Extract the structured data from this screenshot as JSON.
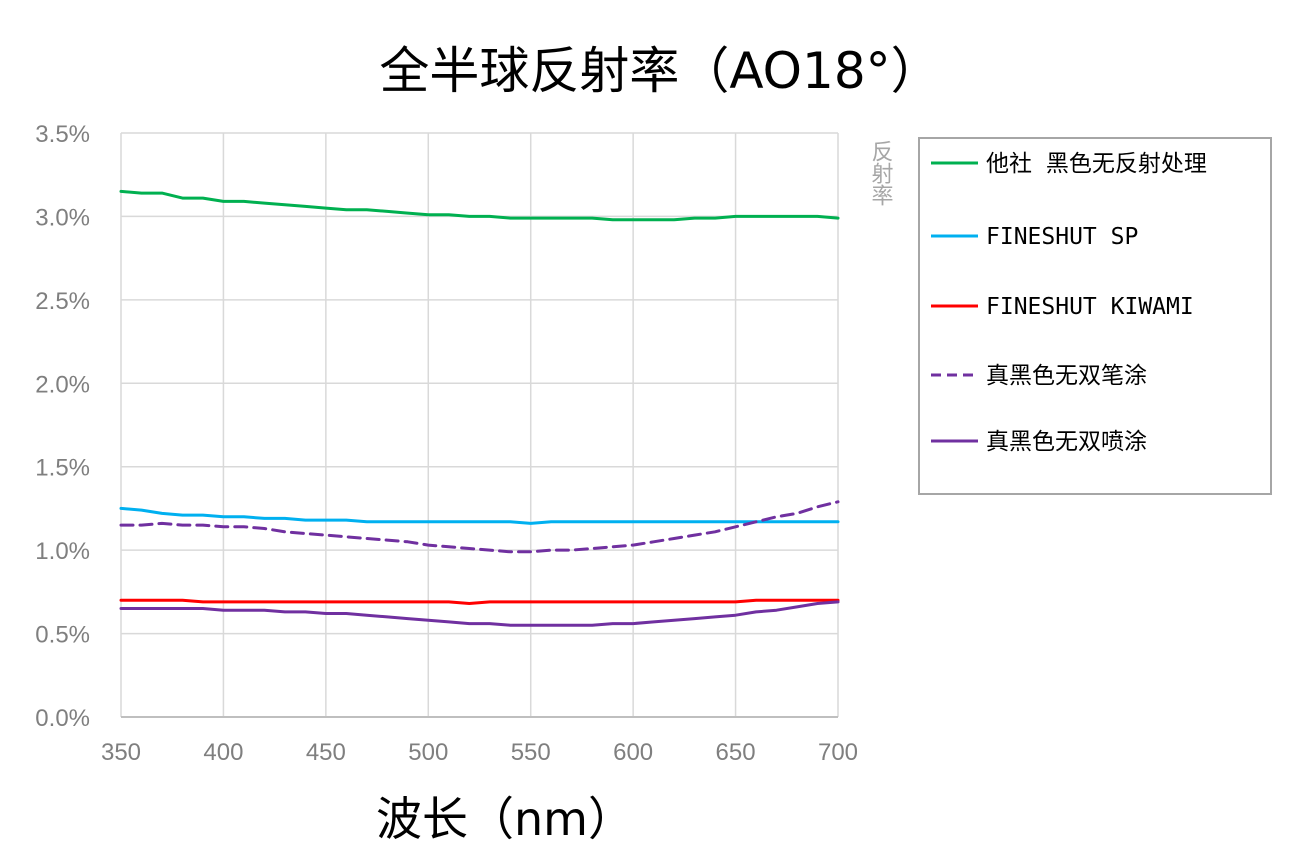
{
  "chart_data": {
    "type": "line",
    "title": "全半球反射率（AO18°）",
    "xlabel": "波长（nm）",
    "ylabel": "反射率",
    "xlim": [
      350,
      700
    ],
    "ylim": [
      0,
      3.5
    ],
    "x_ticks": [
      "350",
      "400",
      "450",
      "500",
      "550",
      "600",
      "650",
      "700"
    ],
    "y_ticks": [
      "0.0%",
      "0.5%",
      "1.0%",
      "1.5%",
      "2.0%",
      "2.5%",
      "3.0%",
      "3.5%"
    ],
    "grid": true,
    "legend_position": "right",
    "series": [
      {
        "name": "他社 黑色无反射处理",
        "color": "#00b050",
        "dash": false,
        "x": [
          350,
          360,
          370,
          380,
          390,
          400,
          410,
          420,
          430,
          440,
          450,
          460,
          470,
          480,
          490,
          500,
          510,
          520,
          530,
          540,
          550,
          560,
          570,
          580,
          590,
          600,
          610,
          620,
          630,
          640,
          650,
          660,
          670,
          680,
          690,
          700
        ],
        "values": [
          3.15,
          3.14,
          3.14,
          3.11,
          3.11,
          3.09,
          3.09,
          3.08,
          3.07,
          3.06,
          3.05,
          3.04,
          3.04,
          3.03,
          3.02,
          3.01,
          3.01,
          3.0,
          3.0,
          2.99,
          2.99,
          2.99,
          2.99,
          2.99,
          2.98,
          2.98,
          2.98,
          2.98,
          2.99,
          2.99,
          3.0,
          3.0,
          3.0,
          3.0,
          3.0,
          2.99
        ]
      },
      {
        "name": "FINESHUT SP",
        "color": "#00b0f0",
        "dash": false,
        "x": [
          350,
          360,
          370,
          380,
          390,
          400,
          410,
          420,
          430,
          440,
          450,
          460,
          470,
          480,
          490,
          500,
          510,
          520,
          530,
          540,
          550,
          560,
          570,
          580,
          590,
          600,
          610,
          620,
          630,
          640,
          650,
          660,
          670,
          680,
          690,
          700
        ],
        "values": [
          1.25,
          1.24,
          1.22,
          1.21,
          1.21,
          1.2,
          1.2,
          1.19,
          1.19,
          1.18,
          1.18,
          1.18,
          1.17,
          1.17,
          1.17,
          1.17,
          1.17,
          1.17,
          1.17,
          1.17,
          1.16,
          1.17,
          1.17,
          1.17,
          1.17,
          1.17,
          1.17,
          1.17,
          1.17,
          1.17,
          1.17,
          1.17,
          1.17,
          1.17,
          1.17,
          1.17
        ]
      },
      {
        "name": "FINESHUT KIWAMI",
        "color": "#ff0000",
        "dash": false,
        "x": [
          350,
          360,
          370,
          380,
          390,
          400,
          410,
          420,
          430,
          440,
          450,
          460,
          470,
          480,
          490,
          500,
          510,
          520,
          530,
          540,
          550,
          560,
          570,
          580,
          590,
          600,
          610,
          620,
          630,
          640,
          650,
          660,
          670,
          680,
          690,
          700
        ],
        "values": [
          0.7,
          0.7,
          0.7,
          0.7,
          0.69,
          0.69,
          0.69,
          0.69,
          0.69,
          0.69,
          0.69,
          0.69,
          0.69,
          0.69,
          0.69,
          0.69,
          0.69,
          0.68,
          0.69,
          0.69,
          0.69,
          0.69,
          0.69,
          0.69,
          0.69,
          0.69,
          0.69,
          0.69,
          0.69,
          0.69,
          0.69,
          0.7,
          0.7,
          0.7,
          0.7,
          0.7
        ]
      },
      {
        "name": "真黑色无双笔涂",
        "color": "#7030a0",
        "dash": true,
        "x": [
          350,
          360,
          370,
          380,
          390,
          400,
          410,
          420,
          430,
          440,
          450,
          460,
          470,
          480,
          490,
          500,
          510,
          520,
          530,
          540,
          550,
          560,
          570,
          580,
          590,
          600,
          610,
          620,
          630,
          640,
          650,
          660,
          670,
          680,
          690,
          700
        ],
        "values": [
          1.15,
          1.15,
          1.16,
          1.15,
          1.15,
          1.14,
          1.14,
          1.13,
          1.11,
          1.1,
          1.09,
          1.08,
          1.07,
          1.06,
          1.05,
          1.03,
          1.02,
          1.01,
          1.0,
          0.99,
          0.99,
          1.0,
          1.0,
          1.01,
          1.02,
          1.03,
          1.05,
          1.07,
          1.09,
          1.11,
          1.14,
          1.17,
          1.2,
          1.22,
          1.26,
          1.29
        ]
      },
      {
        "name": "真黑色无双喷涂",
        "color": "#7030a0",
        "dash": false,
        "x": [
          350,
          360,
          370,
          380,
          390,
          400,
          410,
          420,
          430,
          440,
          450,
          460,
          470,
          480,
          490,
          500,
          510,
          520,
          530,
          540,
          550,
          560,
          570,
          580,
          590,
          600,
          610,
          620,
          630,
          640,
          650,
          660,
          670,
          680,
          690,
          700
        ],
        "values": [
          0.65,
          0.65,
          0.65,
          0.65,
          0.65,
          0.64,
          0.64,
          0.64,
          0.63,
          0.63,
          0.62,
          0.62,
          0.61,
          0.6,
          0.59,
          0.58,
          0.57,
          0.56,
          0.56,
          0.55,
          0.55,
          0.55,
          0.55,
          0.55,
          0.56,
          0.56,
          0.57,
          0.58,
          0.59,
          0.6,
          0.61,
          0.63,
          0.64,
          0.66,
          0.68,
          0.69
        ]
      }
    ]
  }
}
